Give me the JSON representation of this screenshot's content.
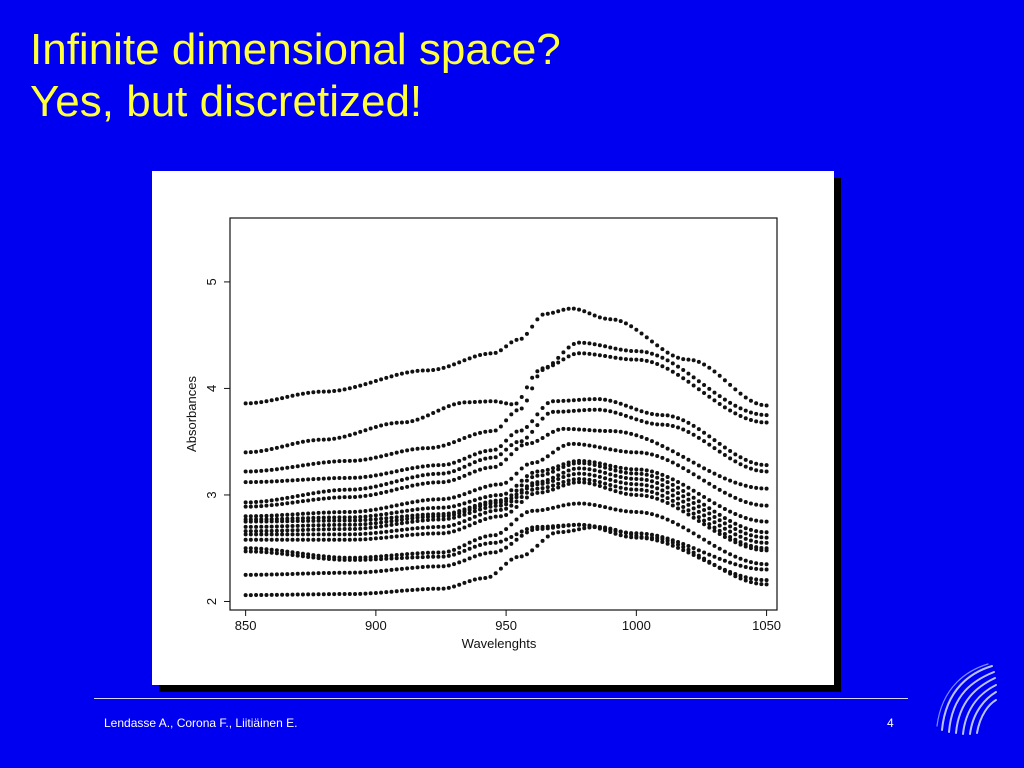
{
  "slide": {
    "title_line1": "Infinite dimensional space?",
    "title_line2": "Yes, but discretized!",
    "footer_authors": "Lendasse A.,  Corona F., Liitiäinen E.",
    "page_number": "4"
  },
  "colors": {
    "background": "#0000f0",
    "title": "#ffff3c",
    "footer": "#ffffff",
    "markers": "#111111"
  },
  "icons": {
    "logo": "swoosh-logo-icon"
  },
  "chart_data": {
    "type": "scatter",
    "title": "",
    "xlabel": "Wavelenghts",
    "ylabel": "Absorbances",
    "xlim": [
      844,
      1054
    ],
    "ylim": [
      1.92,
      5.6
    ],
    "xticks": [
      850,
      900,
      950,
      1000,
      1050
    ],
    "yticks": [
      2,
      3,
      4,
      5
    ],
    "x_start": 850,
    "x_end": 1050,
    "x_step": 2,
    "grid": false,
    "legend": "none",
    "series": [
      {
        "knots": [
          [
            850,
            3.86
          ],
          [
            880,
            3.97
          ],
          [
            920,
            4.17
          ],
          [
            945,
            4.33
          ],
          [
            955,
            4.46
          ],
          [
            965,
            4.7
          ],
          [
            975,
            4.75
          ],
          [
            990,
            4.65
          ],
          [
            1020,
            4.27
          ],
          [
            1050,
            3.84
          ]
        ]
      },
      {
        "knots": [
          [
            850,
            3.4
          ],
          [
            880,
            3.52
          ],
          [
            910,
            3.68
          ],
          [
            935,
            3.87
          ],
          [
            945,
            3.88
          ],
          [
            953,
            3.85
          ],
          [
            963,
            4.17
          ],
          [
            978,
            4.43
          ],
          [
            1000,
            4.35
          ],
          [
            1050,
            3.75
          ]
        ]
      },
      {
        "knots": [
          [
            850,
            3.22
          ],
          [
            890,
            3.32
          ],
          [
            920,
            3.44
          ],
          [
            945,
            3.6
          ],
          [
            955,
            3.8
          ],
          [
            965,
            4.2
          ],
          [
            978,
            4.33
          ],
          [
            1000,
            4.27
          ],
          [
            1050,
            3.68
          ]
        ]
      },
      {
        "knots": [
          [
            850,
            3.12
          ],
          [
            890,
            3.16
          ],
          [
            925,
            3.28
          ],
          [
            945,
            3.42
          ],
          [
            955,
            3.6
          ],
          [
            968,
            3.88
          ],
          [
            985,
            3.9
          ],
          [
            1010,
            3.75
          ],
          [
            1050,
            3.28
          ]
        ]
      },
      {
        "knots": [
          [
            850,
            2.93
          ],
          [
            890,
            3.05
          ],
          [
            925,
            3.2
          ],
          [
            945,
            3.35
          ],
          [
            955,
            3.5
          ],
          [
            968,
            3.78
          ],
          [
            985,
            3.8
          ],
          [
            1010,
            3.66
          ],
          [
            1050,
            3.22
          ]
        ]
      },
      {
        "knots": [
          [
            850,
            2.89
          ],
          [
            890,
            2.98
          ],
          [
            925,
            3.12
          ],
          [
            945,
            3.26
          ],
          [
            958,
            3.48
          ],
          [
            972,
            3.62
          ],
          [
            990,
            3.6
          ],
          [
            1050,
            3.06
          ]
        ]
      },
      {
        "knots": [
          [
            850,
            2.8
          ],
          [
            890,
            2.84
          ],
          [
            925,
            2.96
          ],
          [
            948,
            3.1
          ],
          [
            960,
            3.3
          ],
          [
            975,
            3.48
          ],
          [
            1000,
            3.4
          ],
          [
            1050,
            2.9
          ]
        ]
      },
      {
        "knots": [
          [
            850,
            2.77
          ],
          [
            890,
            2.79
          ],
          [
            925,
            2.88
          ],
          [
            948,
            3.0
          ],
          [
            962,
            3.22
          ],
          [
            978,
            3.32
          ],
          [
            1000,
            3.24
          ],
          [
            1050,
            2.75
          ]
        ]
      },
      {
        "knots": [
          [
            850,
            2.75
          ],
          [
            890,
            2.76
          ],
          [
            925,
            2.82
          ],
          [
            948,
            2.95
          ],
          [
            962,
            3.18
          ],
          [
            978,
            3.3
          ],
          [
            1000,
            3.2
          ],
          [
            1050,
            2.65
          ]
        ]
      },
      {
        "knots": [
          [
            850,
            2.7
          ],
          [
            890,
            2.72
          ],
          [
            925,
            2.8
          ],
          [
            948,
            2.93
          ],
          [
            962,
            3.12
          ],
          [
            978,
            3.25
          ],
          [
            1000,
            3.15
          ],
          [
            1050,
            2.6
          ]
        ]
      },
      {
        "knots": [
          [
            850,
            2.66
          ],
          [
            890,
            2.68
          ],
          [
            925,
            2.77
          ],
          [
            948,
            2.9
          ],
          [
            962,
            3.1
          ],
          [
            978,
            3.2
          ],
          [
            1000,
            3.1
          ],
          [
            1050,
            2.55
          ]
        ]
      },
      {
        "knots": [
          [
            850,
            2.63
          ],
          [
            890,
            2.63
          ],
          [
            925,
            2.7
          ],
          [
            948,
            2.86
          ],
          [
            962,
            3.06
          ],
          [
            978,
            3.15
          ],
          [
            1000,
            3.05
          ],
          [
            1050,
            2.5
          ]
        ]
      },
      {
        "knots": [
          [
            850,
            2.58
          ],
          [
            890,
            2.58
          ],
          [
            925,
            2.64
          ],
          [
            948,
            2.8
          ],
          [
            962,
            3.02
          ],
          [
            978,
            3.12
          ],
          [
            1000,
            3.0
          ],
          [
            1050,
            2.48
          ]
        ]
      },
      {
        "knots": [
          [
            850,
            2.5
          ],
          [
            890,
            2.41
          ],
          [
            925,
            2.46
          ],
          [
            945,
            2.62
          ],
          [
            960,
            2.85
          ],
          [
            978,
            2.92
          ],
          [
            1000,
            2.84
          ],
          [
            1050,
            2.35
          ]
        ]
      },
      {
        "knots": [
          [
            850,
            2.47
          ],
          [
            890,
            2.39
          ],
          [
            925,
            2.42
          ],
          [
            945,
            2.55
          ],
          [
            962,
            2.7
          ],
          [
            978,
            2.72
          ],
          [
            1000,
            2.64
          ],
          [
            1050,
            2.3
          ]
        ]
      },
      {
        "knots": [
          [
            850,
            2.25
          ],
          [
            890,
            2.27
          ],
          [
            925,
            2.33
          ],
          [
            945,
            2.46
          ],
          [
            962,
            2.68
          ],
          [
            978,
            2.72
          ],
          [
            1000,
            2.6
          ],
          [
            1050,
            2.2
          ]
        ]
      },
      {
        "knots": [
          [
            850,
            2.06
          ],
          [
            890,
            2.07
          ],
          [
            925,
            2.12
          ],
          [
            942,
            2.22
          ],
          [
            955,
            2.42
          ],
          [
            970,
            2.65
          ],
          [
            985,
            2.7
          ],
          [
            1005,
            2.6
          ],
          [
            1050,
            2.16
          ]
        ]
      }
    ]
  }
}
